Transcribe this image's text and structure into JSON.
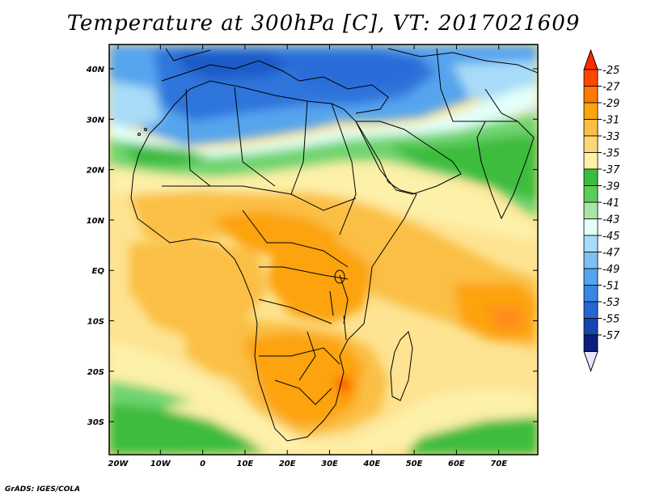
{
  "title": "Temperature at 300hPa [C], VT: 2017021609",
  "credit": "GrADS: IGES/COLA",
  "map": {
    "lon_ticks": [
      "20W",
      "10W",
      "0",
      "10E",
      "20E",
      "30E",
      "40E",
      "50E",
      "60E",
      "70E"
    ],
    "lat_ticks": [
      "40N",
      "30N",
      "20N",
      "10N",
      "EQ",
      "10S",
      "20S",
      "30S"
    ]
  },
  "colorbar": {
    "labels": [
      "-25",
      "-27",
      "-29",
      "-31",
      "-33",
      "-35",
      "-37",
      "-39",
      "-41",
      "-43",
      "-45",
      "-47",
      "-49",
      "-51",
      "-53",
      "-55",
      "-57"
    ],
    "colors": [
      "#ff4500",
      "#ff7a00",
      "#fca310",
      "#fbbf45",
      "#fdd675",
      "#fdf0a8",
      "#3cbc3c",
      "#5ccd5c",
      "#a8e6a8",
      "#e4fffa",
      "#a8dcf8",
      "#7ec0f4",
      "#56a4ee",
      "#3a86e4",
      "#2666d4",
      "#1446ae",
      "#0a1e7a"
    ],
    "top_color": "#ff2a00",
    "bottom_color": "#e6e6ff"
  },
  "colors": {
    "land_border": "#000000",
    "frame": "#000000"
  }
}
